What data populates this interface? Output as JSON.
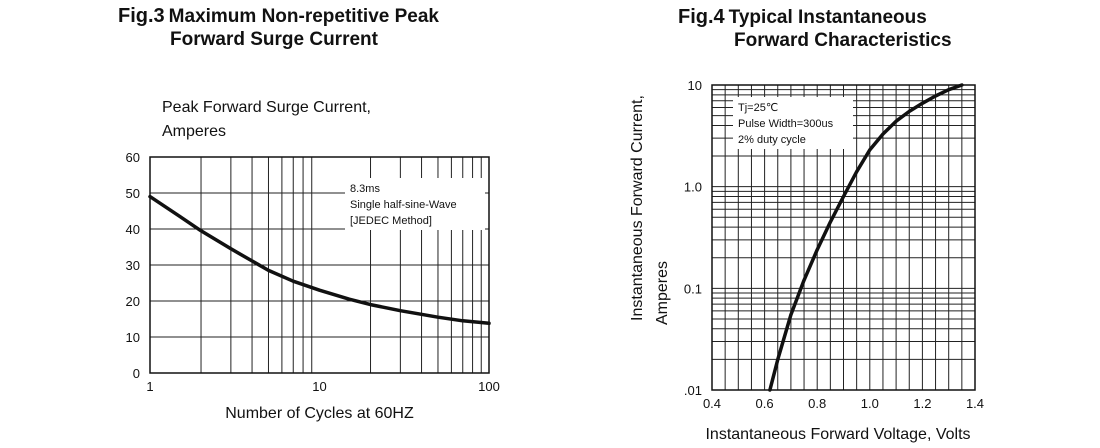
{
  "figures": {
    "fig3": {
      "number": "Fig.3",
      "title_line1": "Maximum Non-repetitive  Peak",
      "title_line2": "Forward Surge Current"
    },
    "fig4": {
      "number": "Fig.4",
      "title_line1": "Typical Instantaneous",
      "title_line2": "Forward Characteristics"
    }
  },
  "chart_data": [
    {
      "type": "line",
      "title": "Maximum Non-repetitive  Peak Forward Surge Current",
      "ylabel_lines": [
        "Peak Forward Surge Current,",
        "Amperes"
      ],
      "xlabel": "Number of Cycles at 60HZ",
      "x_scale": "log",
      "xlim": [
        1,
        100
      ],
      "ylim": [
        0,
        60
      ],
      "x_ticks": [
        {
          "value": 1,
          "label": "1"
        },
        {
          "value": 10,
          "label": "10"
        },
        {
          "value": 100,
          "label": "100"
        }
      ],
      "y_ticks": [
        {
          "value": 0,
          "label": "0"
        },
        {
          "value": 10,
          "label": "10"
        },
        {
          "value": 20,
          "label": "20"
        },
        {
          "value": 30,
          "label": "30"
        },
        {
          "value": 40,
          "label": "40"
        },
        {
          "value": 50,
          "label": "50"
        },
        {
          "value": 60,
          "label": "60"
        }
      ],
      "grid": true,
      "annotation_lines": [
        "8.3ms",
        "Single half-sine-Wave",
        "[JEDEC Method]"
      ],
      "series": [
        {
          "x": [
            1,
            1.5,
            2,
            3,
            5,
            7,
            10,
            15,
            20,
            30,
            50,
            70,
            100
          ],
          "y": [
            49,
            43.5,
            39.5,
            34.5,
            28.5,
            25.5,
            23,
            20.5,
            19,
            17.3,
            15.5,
            14.5,
            13.8
          ]
        }
      ]
    },
    {
      "type": "line",
      "title": "Typical Instantaneous Forward Characteristics",
      "ylabel_lines": [
        "Instantaneous  Forward  Current,",
        "Amperes"
      ],
      "xlabel": "Instantaneous  Forward  Voltage, Volts",
      "y_scale": "log",
      "xlim": [
        0.4,
        1.4
      ],
      "ylim": [
        0.01,
        10
      ],
      "x_ticks": [
        {
          "value": 0.4,
          "label": "0.4"
        },
        {
          "value": 0.6,
          "label": "0.6"
        },
        {
          "value": 0.8,
          "label": "0.8"
        },
        {
          "value": 1.0,
          "label": "1.0"
        },
        {
          "value": 1.2,
          "label": "1.2"
        },
        {
          "value": 1.4,
          "label": "1.4"
        }
      ],
      "y_ticks": [
        {
          "value": 0.01,
          "label": ".01"
        },
        {
          "value": 0.1,
          "label": "0.1"
        },
        {
          "value": 1.0,
          "label": "1.0"
        },
        {
          "value": 10,
          "label": "10"
        }
      ],
      "grid": true,
      "annotation_lines": [
        "Tj=25℃",
        "Pulse Width=300us",
        "2% duty cycle"
      ],
      "series": [
        {
          "x": [
            0.62,
            0.65,
            0.7,
            0.75,
            0.8,
            0.85,
            0.9,
            0.95,
            1.0,
            1.05,
            1.1,
            1.15,
            1.2,
            1.25,
            1.3,
            1.35
          ],
          "y": [
            0.01,
            0.02,
            0.055,
            0.12,
            0.24,
            0.45,
            0.8,
            1.4,
            2.3,
            3.3,
            4.4,
            5.5,
            6.6,
            7.8,
            9.0,
            10.0
          ]
        }
      ]
    }
  ]
}
